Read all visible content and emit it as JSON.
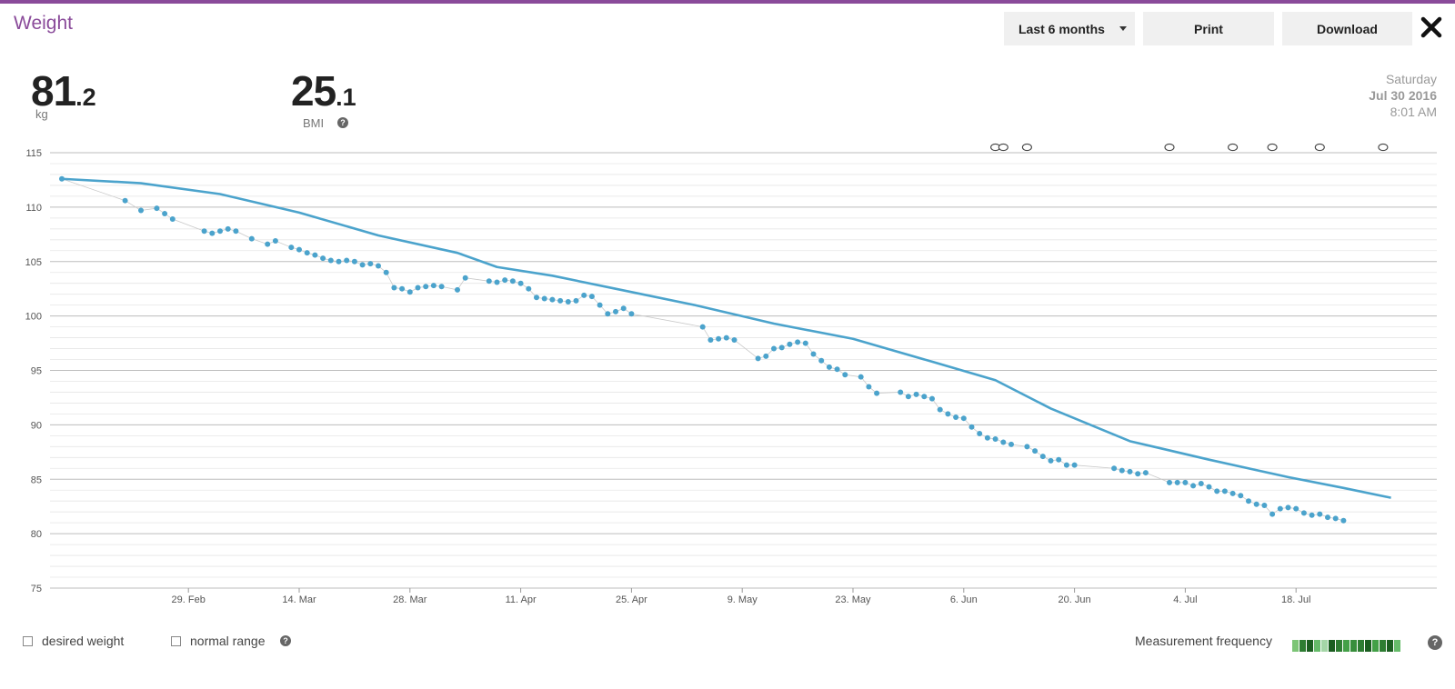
{
  "header": {
    "title": "Weight",
    "range_label": "Last 6 months",
    "print_label": "Print",
    "download_label": "Download"
  },
  "stats": {
    "weight_int": "81",
    "weight_dec": ".2",
    "weight_unit": "kg",
    "bmi_int": "25",
    "bmi_dec": ".1",
    "bmi_label": "BMI"
  },
  "date": {
    "weekday": "Saturday",
    "date": "Jul 30 2016",
    "time": "8:01 AM"
  },
  "footer": {
    "desired_weight_label": "desired weight",
    "normal_range_label": "normal range",
    "measurement_frequency_label": "Measurement frequency",
    "frequency_colors": [
      "#7cc576",
      "#2e7d32",
      "#1b5e20",
      "#66bb6a",
      "#a5d6a7",
      "#1b5e20",
      "#2e7d32",
      "#43a047",
      "#388e3c",
      "#2e7d32",
      "#1b5e20",
      "#43a047",
      "#2e7d32",
      "#1b5e20",
      "#66bb6a"
    ]
  },
  "colors": {
    "accent": "#8a4b9a",
    "series": "#4ba3cc"
  },
  "chart_data": {
    "type": "line",
    "ylim": [
      75,
      115
    ],
    "y_ticks": [
      "115",
      "110",
      "105",
      "100",
      "95",
      "90",
      "85",
      "80",
      "75"
    ],
    "x_tick_labels": [
      "29. Feb",
      "14. Mar",
      "28. Mar",
      "11. Apr",
      "25. Apr",
      "9. May",
      "23. May",
      "6. Jun",
      "20. Jun",
      "4. Jul",
      "18. Jul"
    ],
    "x_tick_days": [
      16,
      30,
      44,
      58,
      72,
      86,
      100,
      114,
      128,
      142,
      156
    ],
    "grid": true,
    "note_markers_days": [
      118,
      119,
      122,
      140,
      148,
      153,
      159,
      167
    ],
    "series": [
      {
        "kind": "trend",
        "points": [
          [
            0,
            112.6
          ],
          [
            10,
            112.2
          ],
          [
            20,
            111.2
          ],
          [
            30,
            109.5
          ],
          [
            40,
            107.4
          ],
          [
            50,
            105.8
          ],
          [
            55,
            104.5
          ],
          [
            62,
            103.7
          ],
          [
            70,
            102.5
          ],
          [
            80,
            101.0
          ],
          [
            90,
            99.3
          ],
          [
            100,
            97.9
          ],
          [
            110,
            95.8
          ],
          [
            118,
            94.1
          ],
          [
            125,
            91.5
          ],
          [
            135,
            88.5
          ],
          [
            145,
            86.8
          ],
          [
            155,
            85.2
          ],
          [
            162,
            84.2
          ],
          [
            168,
            83.3
          ]
        ]
      },
      {
        "kind": "measurements",
        "points": [
          [
            0,
            112.6
          ],
          [
            8,
            110.6
          ],
          [
            10,
            109.7
          ],
          [
            12,
            109.9
          ],
          [
            13,
            109.4
          ],
          [
            14,
            108.9
          ],
          [
            18,
            107.8
          ],
          [
            19,
            107.6
          ],
          [
            20,
            107.8
          ],
          [
            21,
            108.0
          ],
          [
            22,
            107.8
          ],
          [
            24,
            107.1
          ],
          [
            26,
            106.6
          ],
          [
            27,
            106.9
          ],
          [
            29,
            106.3
          ],
          [
            30,
            106.1
          ],
          [
            31,
            105.8
          ],
          [
            32,
            105.6
          ],
          [
            33,
            105.3
          ],
          [
            34,
            105.1
          ],
          [
            35,
            105.0
          ],
          [
            36,
            105.1
          ],
          [
            37,
            105.0
          ],
          [
            38,
            104.7
          ],
          [
            39,
            104.8
          ],
          [
            40,
            104.6
          ],
          [
            41,
            104.0
          ],
          [
            42,
            102.6
          ],
          [
            43,
            102.5
          ],
          [
            44,
            102.2
          ],
          [
            45,
            102.6
          ],
          [
            46,
            102.7
          ],
          [
            47,
            102.8
          ],
          [
            48,
            102.7
          ],
          [
            50,
            102.4
          ],
          [
            51,
            103.5
          ],
          [
            54,
            103.2
          ],
          [
            55,
            103.1
          ],
          [
            56,
            103.3
          ],
          [
            57,
            103.2
          ],
          [
            58,
            103.0
          ],
          [
            59,
            102.5
          ],
          [
            60,
            101.7
          ],
          [
            61,
            101.6
          ],
          [
            62,
            101.5
          ],
          [
            63,
            101.4
          ],
          [
            64,
            101.3
          ],
          [
            65,
            101.4
          ],
          [
            66,
            101.9
          ],
          [
            67,
            101.8
          ],
          [
            68,
            101.0
          ],
          [
            69,
            100.2
          ],
          [
            70,
            100.4
          ],
          [
            71,
            100.7
          ],
          [
            72,
            100.2
          ],
          [
            81,
            99.0
          ],
          [
            82,
            97.8
          ],
          [
            83,
            97.9
          ],
          [
            84,
            98.0
          ],
          [
            85,
            97.8
          ],
          [
            88,
            96.1
          ],
          [
            89,
            96.3
          ],
          [
            90,
            97.0
          ],
          [
            91,
            97.1
          ],
          [
            92,
            97.4
          ],
          [
            93,
            97.6
          ],
          [
            94,
            97.5
          ],
          [
            95,
            96.5
          ],
          [
            96,
            95.9
          ],
          [
            97,
            95.3
          ],
          [
            98,
            95.1
          ],
          [
            99,
            94.6
          ],
          [
            101,
            94.4
          ],
          [
            102,
            93.5
          ],
          [
            103,
            92.9
          ],
          [
            106,
            93.0
          ],
          [
            107,
            92.6
          ],
          [
            108,
            92.8
          ],
          [
            109,
            92.6
          ],
          [
            110,
            92.4
          ],
          [
            111,
            91.4
          ],
          [
            112,
            91.0
          ],
          [
            113,
            90.7
          ],
          [
            114,
            90.6
          ],
          [
            115,
            89.8
          ],
          [
            116,
            89.2
          ],
          [
            117,
            88.8
          ],
          [
            118,
            88.7
          ],
          [
            119,
            88.4
          ],
          [
            120,
            88.2
          ],
          [
            122,
            88.0
          ],
          [
            123,
            87.6
          ],
          [
            124,
            87.1
          ],
          [
            125,
            86.7
          ],
          [
            126,
            86.8
          ],
          [
            127,
            86.3
          ],
          [
            128,
            86.3
          ],
          [
            133,
            86.0
          ],
          [
            134,
            85.8
          ],
          [
            135,
            85.7
          ],
          [
            136,
            85.5
          ],
          [
            137,
            85.6
          ],
          [
            140,
            84.7
          ],
          [
            141,
            84.7
          ],
          [
            142,
            84.7
          ],
          [
            143,
            84.4
          ],
          [
            144,
            84.6
          ],
          [
            145,
            84.3
          ],
          [
            146,
            83.9
          ],
          [
            147,
            83.9
          ],
          [
            148,
            83.7
          ],
          [
            149,
            83.5
          ],
          [
            150,
            83.0
          ],
          [
            151,
            82.7
          ],
          [
            152,
            82.6
          ],
          [
            153,
            81.8
          ],
          [
            154,
            82.3
          ],
          [
            155,
            82.4
          ],
          [
            156,
            82.3
          ],
          [
            157,
            81.9
          ],
          [
            158,
            81.7
          ],
          [
            159,
            81.8
          ],
          [
            160,
            81.5
          ],
          [
            161,
            81.4
          ],
          [
            162,
            81.2
          ]
        ]
      }
    ]
  }
}
